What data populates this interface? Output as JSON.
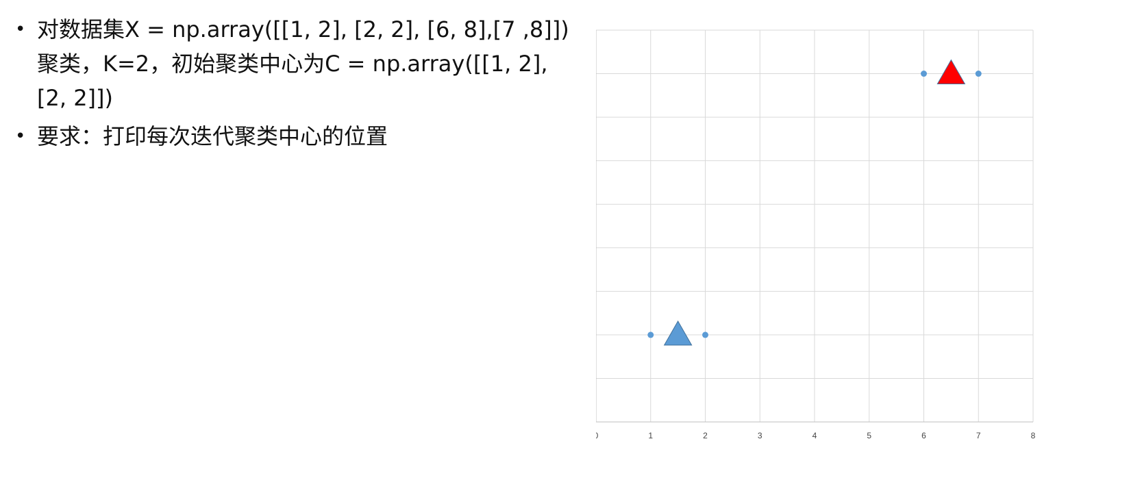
{
  "text": {
    "bullets": [
      {
        "symbol": "•",
        "lines": [
          "对数据集X = np.array([[1, 2], [2, 2], [6, 8],[7 ,8]])",
          "聚类，K=2，初始聚类中心为C = np.array([[1, 2],",
          "[2, 2]])"
        ]
      },
      {
        "symbol": "•",
        "lines": [
          "要求：打印每次迭代聚类中心的位置"
        ]
      }
    ]
  },
  "chart_data": {
    "type": "scatter",
    "xlim": [
      0,
      8
    ],
    "ylim": [
      0,
      9
    ],
    "x_ticks": [
      0,
      1,
      2,
      3,
      4,
      5,
      6,
      7,
      8
    ],
    "y_ticks": [
      0,
      1,
      2,
      3,
      4,
      5,
      6,
      7,
      8,
      9
    ],
    "grid": true,
    "series": [
      {
        "marker": "circle",
        "color": "#5b9bd5",
        "points": [
          [
            1,
            2
          ],
          [
            2,
            2
          ],
          [
            6,
            8
          ],
          [
            7,
            8
          ]
        ]
      },
      {
        "marker": "triangle",
        "color": "#5b9bd5",
        "points": [
          [
            1.5,
            2
          ]
        ]
      },
      {
        "marker": "triangle",
        "color": "#ff0000",
        "points": [
          [
            6.5,
            8
          ]
        ]
      }
    ]
  }
}
